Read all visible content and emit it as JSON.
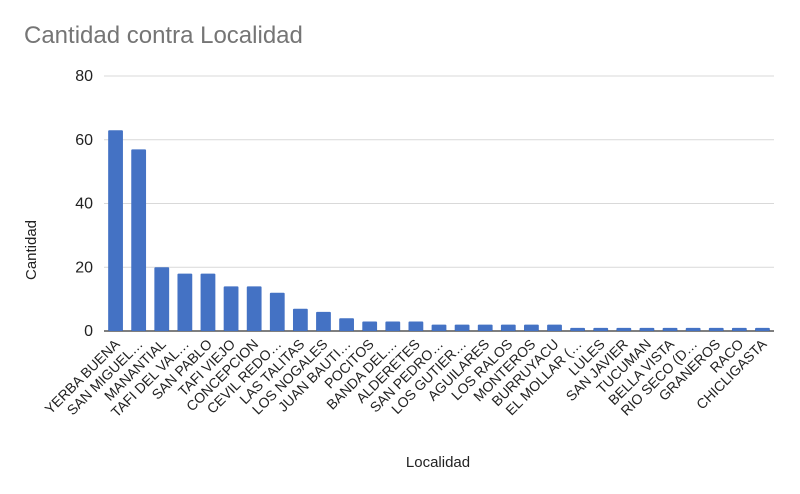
{
  "chart_data": {
    "type": "bar",
    "title": "Cantidad contra Localidad",
    "xlabel": "Localidad",
    "ylabel": "Cantidad",
    "ylim": [
      0,
      80
    ],
    "yticks": [
      0,
      20,
      40,
      60,
      80
    ],
    "grid": true,
    "colors": {
      "bar": "#4472c4",
      "grid": "#d9d9d9",
      "baseline": "#333333",
      "title": "#757575"
    },
    "categories": [
      "YERBA BUENA",
      "SAN MIGUEL…",
      "MANANTIAL",
      "TAFI DEL VAL…",
      "SAN PABLO",
      "TAFI VIEJO",
      "CONCEPCION",
      "CEVIL REDO…",
      "LAS TALITAS",
      "LOS NOGALES",
      "JUAN BAUTI…",
      "POCITOS",
      "BANDA DEL…",
      "ALDERETES",
      "SAN PEDRO…",
      "LOS GUTIER…",
      "AGUILARES",
      "LOS RALOS",
      "MONTEROS",
      "BURRUYACU",
      "EL MOLLAR (…",
      "LULES",
      "SAN JAVIER",
      "TUCUMAN",
      "BELLA VISTA",
      "RIO SECO (D…",
      "GRANEROS",
      "RACO",
      "CHICLIGASTA"
    ],
    "values": [
      63,
      57,
      20,
      18,
      18,
      14,
      14,
      12,
      7,
      6,
      4,
      3,
      3,
      3,
      2,
      2,
      2,
      2,
      2,
      2,
      1,
      1,
      1,
      1,
      1,
      1,
      1,
      1,
      1
    ]
  }
}
